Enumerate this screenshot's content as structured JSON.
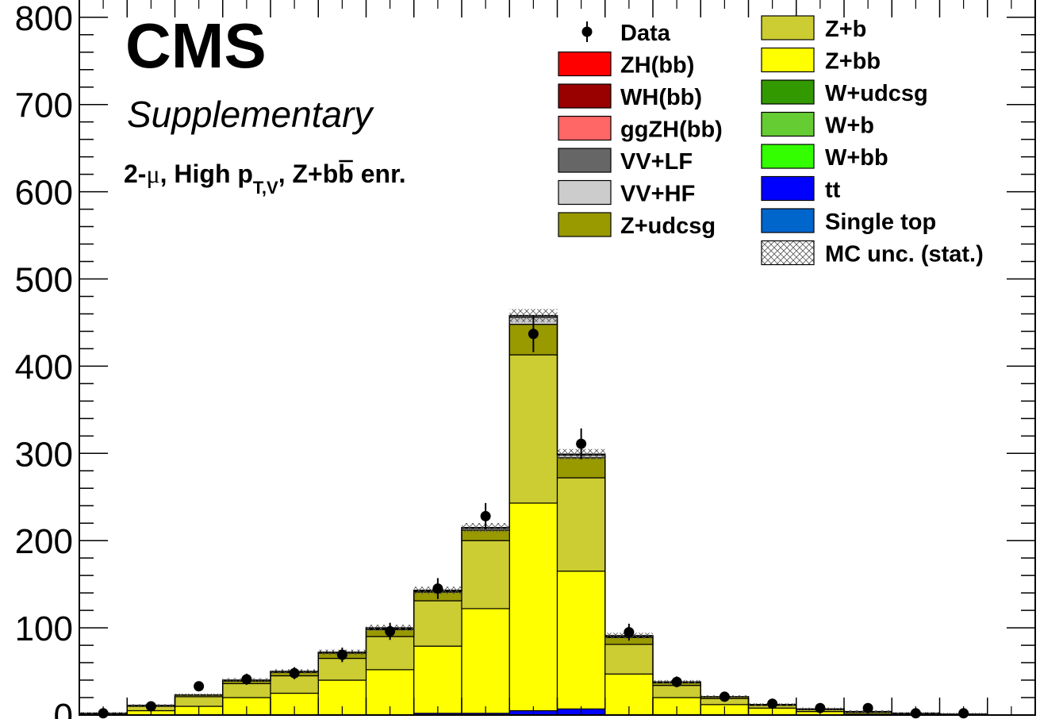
{
  "chart_data": {
    "type": "bar",
    "stacked": true,
    "experiment": "CMS",
    "status": "Supplementary",
    "category_label": {
      "a": "2-",
      "mu": "μ",
      "b": ", High p",
      "sub": "T,V",
      "c": ", Z+b",
      "bbar": "b",
      "d": " enr."
    },
    "ylim": [
      0,
      820
    ],
    "yticks": [
      "0",
      "100",
      "200",
      "300",
      "400",
      "500",
      "600",
      "700",
      "800"
    ],
    "ytick_values": [
      0,
      100,
      200,
      300,
      400,
      500,
      600,
      700,
      800
    ],
    "bins": 20,
    "series": [
      {
        "name": "ttbar",
        "color": "#0000ff",
        "values": [
          0,
          0,
          0,
          0,
          0,
          0,
          0,
          2,
          2,
          5,
          7,
          0,
          0,
          0,
          0,
          0,
          0,
          0,
          0,
          0
        ]
      },
      {
        "name": "Z+bb",
        "color": "#ffff00",
        "values": [
          1,
          5,
          10,
          20,
          25,
          40,
          52,
          77,
          120,
          238,
          158,
          47,
          20,
          12,
          8,
          4,
          1,
          1,
          0,
          0
        ]
      },
      {
        "name": "Z+b",
        "color": "#cccc33",
        "values": [
          1,
          5,
          11,
          16,
          20,
          25,
          38,
          52,
          78,
          170,
          107,
          34,
          14,
          7,
          3,
          2,
          2,
          1,
          1,
          0
        ]
      },
      {
        "name": "Z+udcsg",
        "color": "#999900",
        "values": [
          0,
          1,
          2,
          3,
          4,
          6,
          8,
          10,
          12,
          35,
          23,
          8,
          3,
          2,
          1,
          1,
          1,
          0,
          0,
          0
        ]
      },
      {
        "name": "VV+HF",
        "color": "#cccccc",
        "values": [
          0,
          0,
          0,
          1,
          1,
          1,
          1,
          1,
          2,
          8,
          3,
          1,
          1,
          0,
          0,
          0,
          0,
          0,
          0,
          0
        ]
      },
      {
        "name": "VV+LF",
        "color": "#666666",
        "values": [
          0,
          0,
          0,
          0,
          0,
          0,
          1,
          1,
          1,
          2,
          1,
          1,
          0,
          0,
          0,
          0,
          0,
          0,
          0,
          0
        ]
      }
    ],
    "data": {
      "name": "Data",
      "values": [
        2,
        10,
        33,
        41,
        48,
        69,
        96,
        145,
        228,
        437,
        311,
        95,
        38,
        21,
        13,
        8,
        8,
        2,
        2,
        0
      ],
      "errors": [
        1.4,
        3.2,
        5.7,
        6.4,
        6.9,
        8.3,
        9.8,
        12.0,
        15.1,
        20.9,
        17.6,
        9.7,
        6.2,
        4.6,
        3.6,
        2.8,
        2.8,
        1.4,
        1.4,
        0
      ]
    },
    "legend": {
      "placement": "top-right",
      "col1": [
        {
          "label": "Data",
          "kind": "marker"
        },
        {
          "label": "ZH(bb)",
          "color": "#ff0000"
        },
        {
          "label": "WH(bb)",
          "color": "#990000"
        },
        {
          "label": "ggZH(bb)",
          "color": "#ff6666"
        },
        {
          "label": "VV+LF",
          "color": "#666666"
        },
        {
          "label": "VV+HF",
          "color": "#cccccc"
        },
        {
          "label": "Z+udcsg",
          "color": "#999900"
        }
      ],
      "col2": [
        {
          "label": "Z+b",
          "color": "#cccc33"
        },
        {
          "label": "Z+bb",
          "color": "#ffff00"
        },
        {
          "label": "W+udcsg",
          "color": "#339900"
        },
        {
          "label": "W+b",
          "color": "#66cc33"
        },
        {
          "label": "W+bb",
          "color": "#33ff00"
        },
        {
          "label": "tt",
          "color": "#0000ff"
        },
        {
          "label": "Single top",
          "color": "#0066cc"
        },
        {
          "label": "MC unc. (stat.)",
          "kind": "hatch"
        }
      ]
    }
  }
}
